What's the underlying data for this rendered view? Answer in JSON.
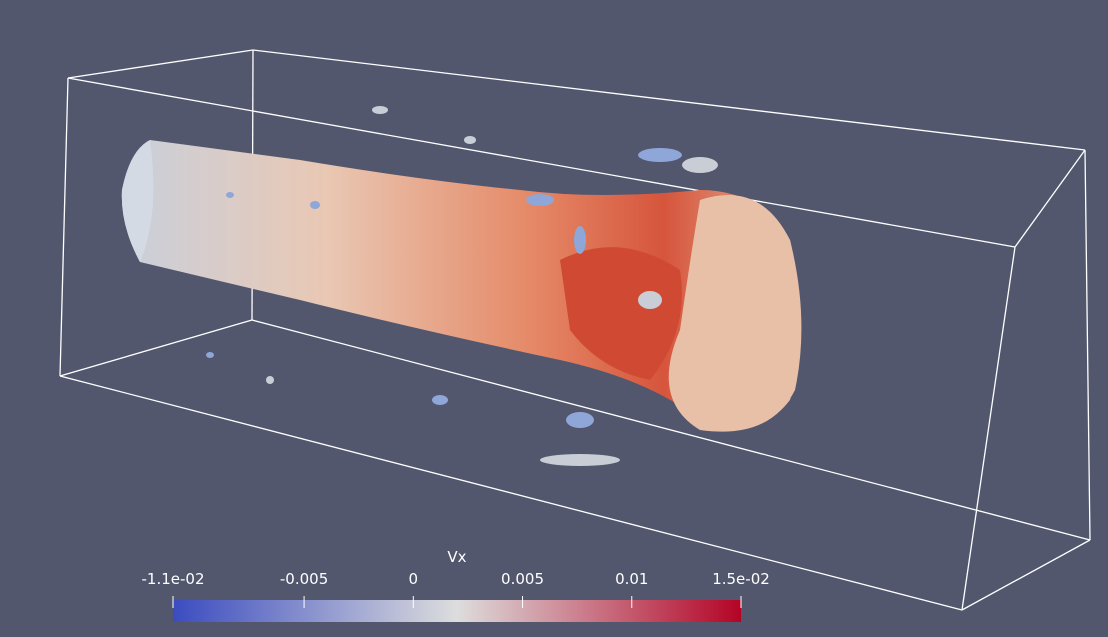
{
  "colorbar": {
    "title": "Vx",
    "range": [
      -0.011,
      0.015
    ],
    "ticks": [
      {
        "value": -0.011,
        "label": "-1.1e-02"
      },
      -0.005,
      0,
      0.005,
      0.01,
      {
        "value": 0.015,
        "label": "1.5e-02"
      }
    ],
    "colors": [
      "#3b4cc0",
      "#dddddd",
      "#b40426"
    ]
  }
}
